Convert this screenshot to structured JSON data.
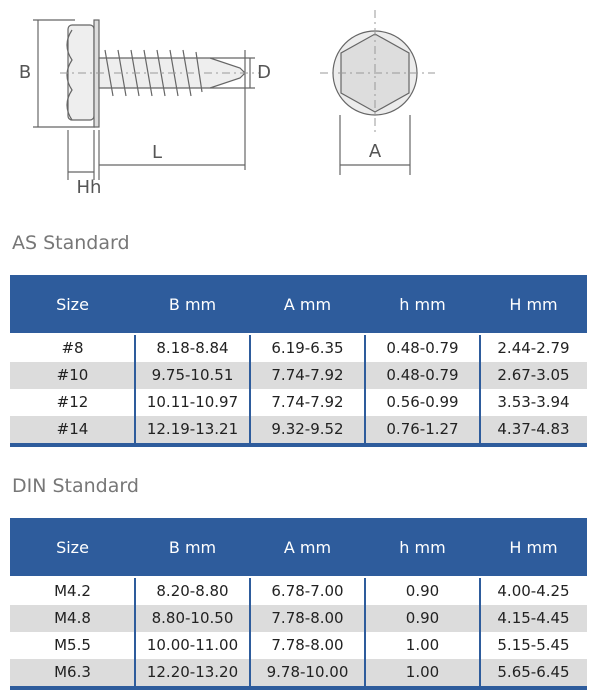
{
  "diagram": {
    "labels": {
      "b": "B",
      "d": "D",
      "l": "L",
      "hh": "Hh",
      "a": "A"
    }
  },
  "tables": [
    {
      "title": "AS Standard",
      "headers": [
        "Size",
        "B  mm",
        "A  mm",
        "h  mm",
        "H  mm"
      ],
      "rows": [
        [
          "#8",
          "8.18-8.84",
          "6.19-6.35",
          "0.48-0.79",
          "2.44-2.79"
        ],
        [
          "#10",
          "9.75-10.51",
          "7.74-7.92",
          "0.48-0.79",
          "2.67-3.05"
        ],
        [
          "#12",
          "10.11-10.97",
          "7.74-7.92",
          "0.56-0.99",
          "3.53-3.94"
        ],
        [
          "#14",
          "12.19-13.21",
          "9.32-9.52",
          "0.76-1.27",
          "4.37-4.83"
        ]
      ]
    },
    {
      "title": "DIN Standard",
      "headers": [
        "Size",
        "B  mm",
        "A  mm",
        "h  mm",
        "H  mm"
      ],
      "rows": [
        [
          "M4.2",
          "8.20-8.80",
          "6.78-7.00",
          "0.90",
          "4.00-4.25"
        ],
        [
          "M4.8",
          "8.80-10.50",
          "7.78-8.00",
          "0.90",
          "4.15-4.45"
        ],
        [
          "M5.5",
          "10.00-11.00",
          "7.78-8.00",
          "1.00",
          "5.15-5.45"
        ],
        [
          "M6.3",
          "12.20-13.20",
          "9.78-10.00",
          "1.00",
          "5.65-6.45"
        ]
      ]
    }
  ]
}
